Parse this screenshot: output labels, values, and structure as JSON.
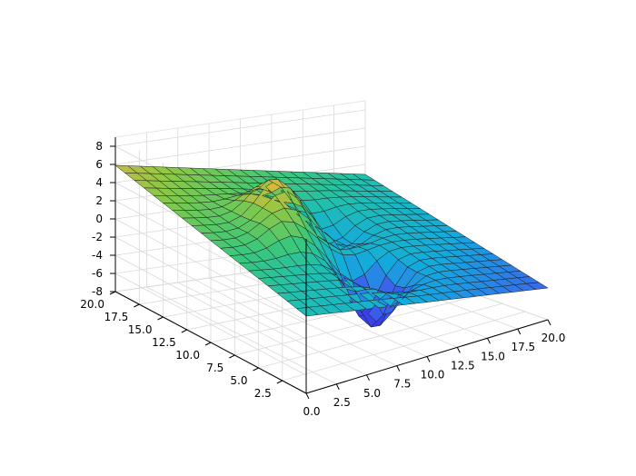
{
  "chart_data": {
    "type": "surface",
    "title": "",
    "xlabel": "",
    "ylabel": "",
    "zlabel": "",
    "xlim": [
      0,
      20
    ],
    "ylim": [
      0,
      20
    ],
    "zlim": [
      -8,
      9
    ],
    "grid": true,
    "colormap": "viridis-like (blue to yellow)",
    "x_ticks": [
      "0.0",
      "2.5",
      "5.0",
      "7.5",
      "10.0",
      "12.5",
      "15.0",
      "17.5",
      "20.0"
    ],
    "y_ticks": [
      "2.5",
      "5.0",
      "7.5",
      "10.0",
      "12.5",
      "15.0",
      "17.5",
      "20.0"
    ],
    "z_ticks": [
      "-8",
      "-6",
      "-4",
      "-2",
      "0",
      "2",
      "4",
      "6",
      "8"
    ],
    "x_tick_values": [
      0,
      2.5,
      5,
      7.5,
      10,
      12.5,
      15,
      17.5,
      20
    ],
    "y_tick_values": [
      2.5,
      5,
      7.5,
      10,
      12.5,
      15,
      17.5,
      20
    ],
    "z_tick_values": [
      -8,
      -6,
      -4,
      -2,
      0,
      2,
      4,
      6,
      8
    ],
    "surface": {
      "grid_n": 21,
      "x_range": [
        0,
        20
      ],
      "y_range": [
        0,
        20
      ],
      "z_min": -7.5,
      "z_max": 8.8,
      "features": [
        {
          "kind": "peak",
          "x": 7,
          "y": 12,
          "height": 8.8
        },
        {
          "kind": "ridge",
          "x": 6,
          "y": 10,
          "height": 3.5
        },
        {
          "kind": "trough",
          "x": 10,
          "y": 6,
          "depth": -7.5
        },
        {
          "kind": "trough",
          "x": 12,
          "y": 13,
          "depth": -4
        }
      ],
      "corner_values": {
        "x0_y0": 0.5,
        "x0_y20": 5.8,
        "x20_y0": -4.5,
        "x20_y20": -0.5
      }
    }
  }
}
